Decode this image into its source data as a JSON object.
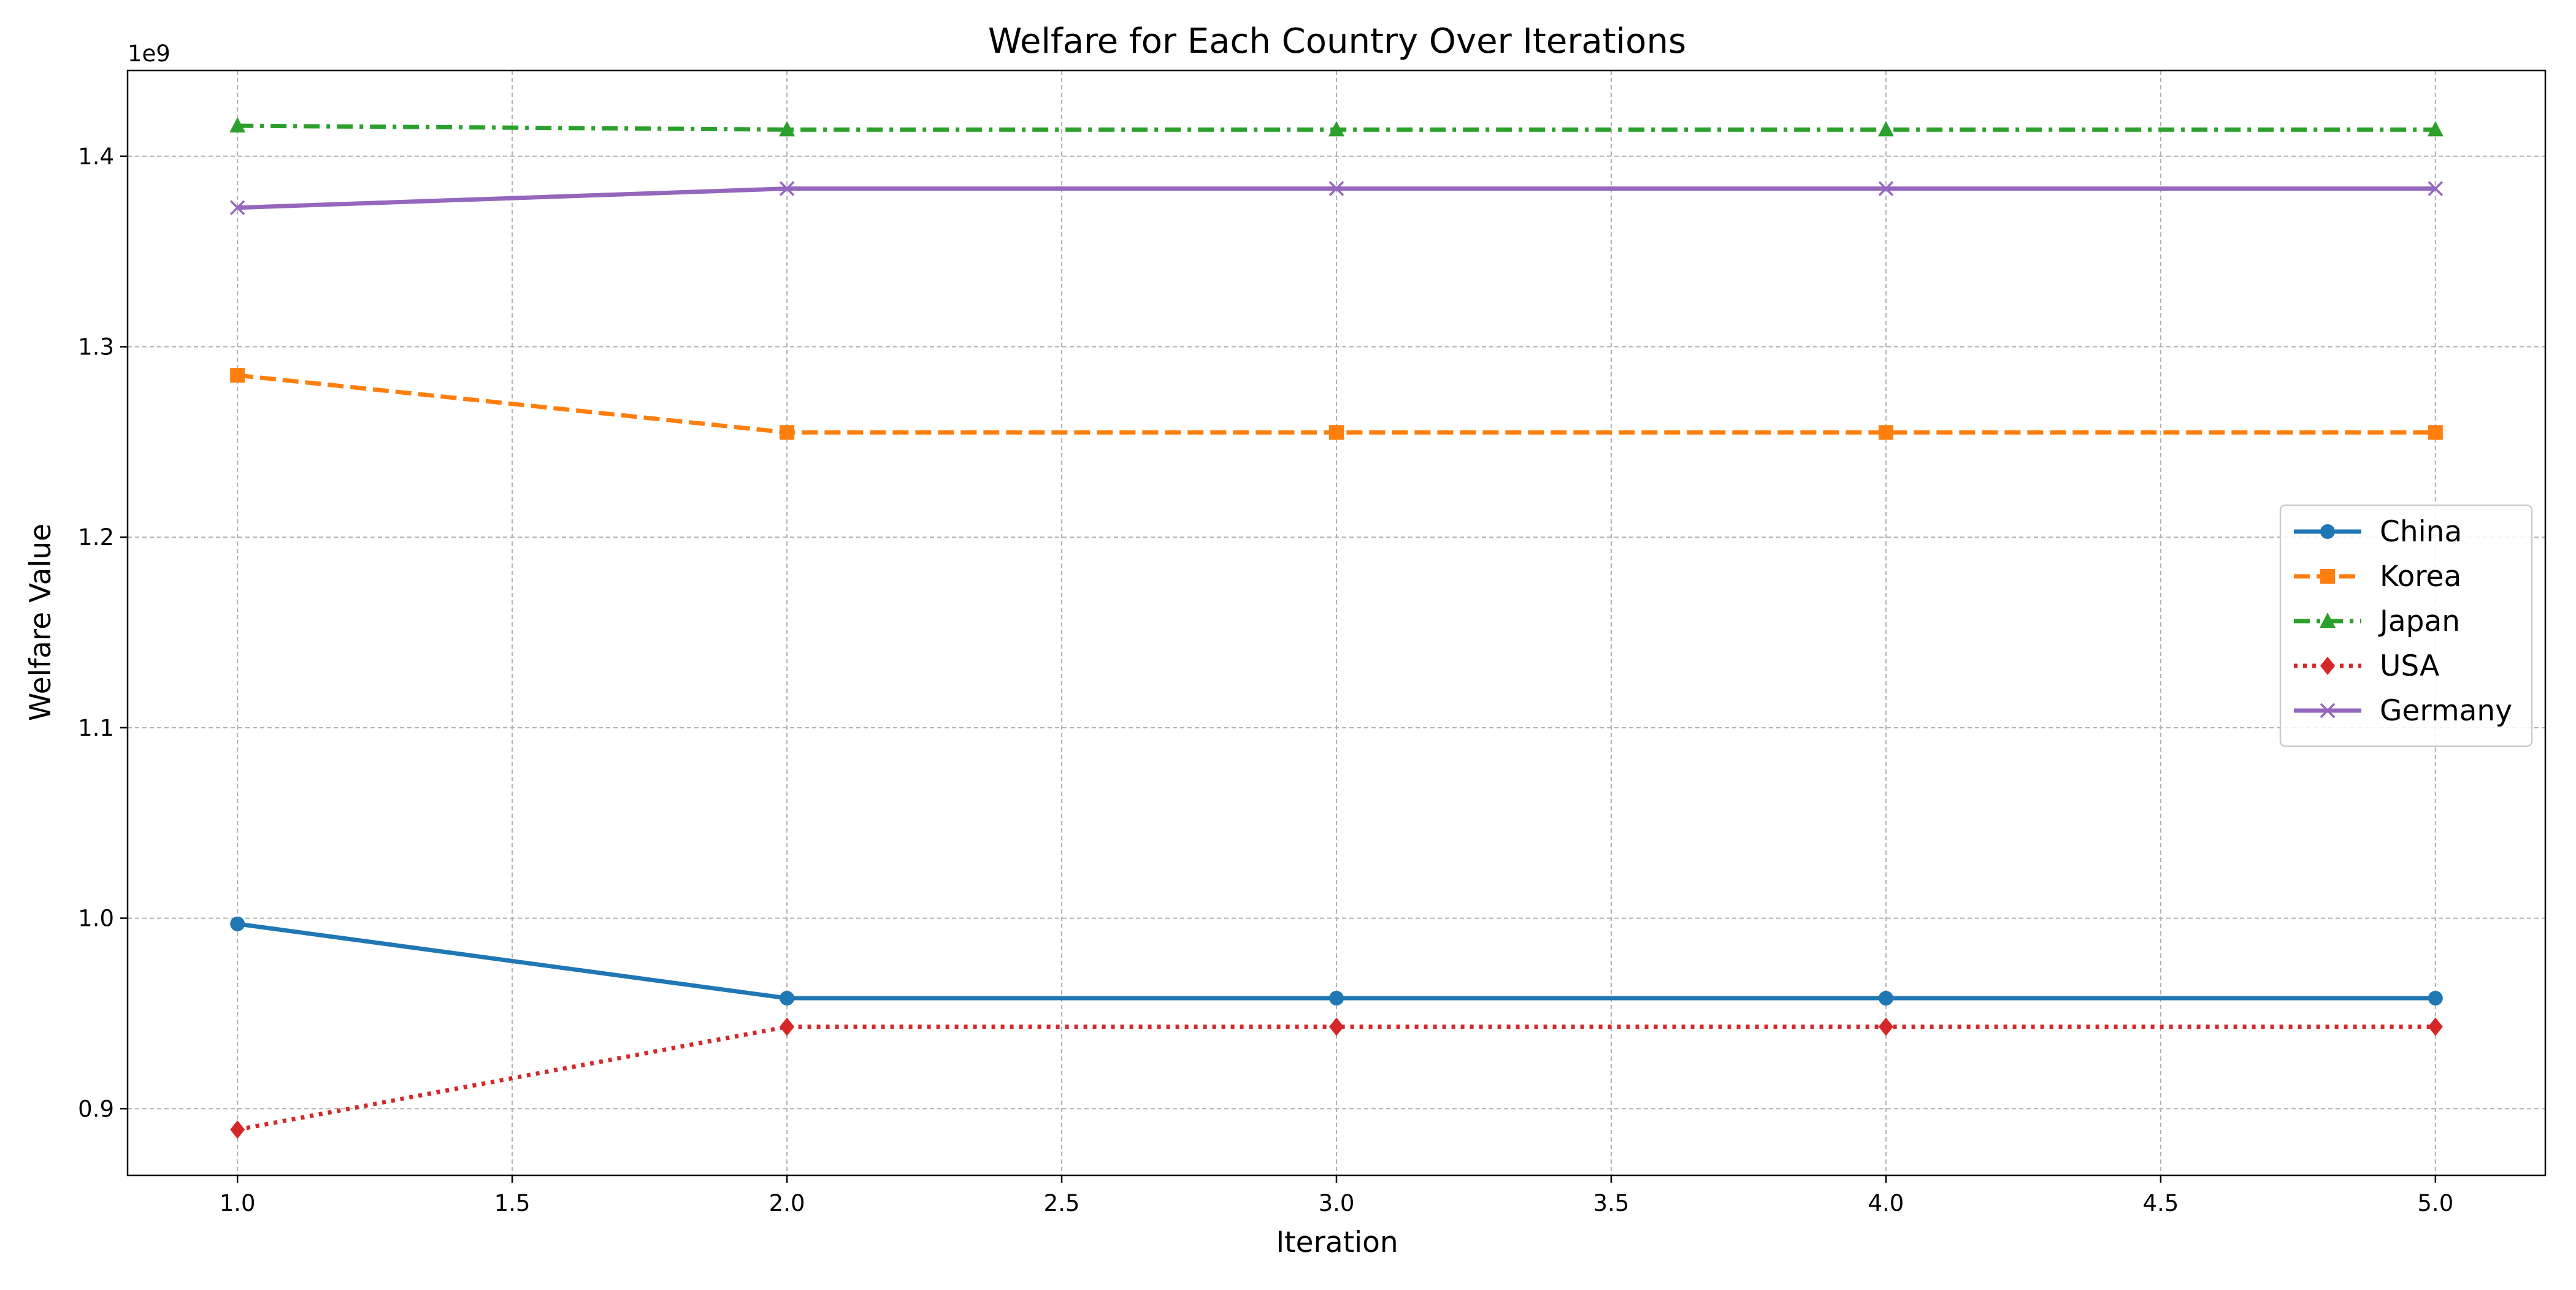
{
  "chart_data": {
    "type": "line",
    "title": "Welfare for Each Country Over Iterations",
    "xlabel": "Iteration",
    "ylabel": "Welfare Value",
    "y_offset_text": "1e9",
    "y_multiplier": 1000000000,
    "xlim": [
      0.8,
      5.2
    ],
    "ylim": [
      865000000,
      1445000000
    ],
    "x_ticks": [
      1.0,
      1.5,
      2.0,
      2.5,
      3.0,
      3.5,
      4.0,
      4.5,
      5.0
    ],
    "x_tick_labels": [
      "1.0",
      "1.5",
      "2.0",
      "2.5",
      "3.0",
      "3.5",
      "4.0",
      "4.5",
      "5.0"
    ],
    "y_ticks": [
      900000000,
      1000000000,
      1100000000,
      1200000000,
      1300000000,
      1400000000
    ],
    "y_tick_labels": [
      "0.9",
      "1.0",
      "1.1",
      "1.2",
      "1.3",
      "1.4"
    ],
    "grid": true,
    "legend_position": "center-right",
    "x": [
      1,
      2,
      3,
      4,
      5
    ],
    "series": [
      {
        "name": "China",
        "color": "#1f77b4",
        "marker": "circle",
        "linestyle": "solid",
        "values": [
          997000000,
          958000000,
          958000000,
          958000000,
          958000000
        ]
      },
      {
        "name": "Korea",
        "color": "#ff7f0e",
        "marker": "square",
        "linestyle": "dashed",
        "values": [
          1285000000,
          1255000000,
          1255000000,
          1255000000,
          1255000000
        ]
      },
      {
        "name": "Japan",
        "color": "#2ca02c",
        "marker": "triangle",
        "linestyle": "dashdot",
        "values": [
          1416000000,
          1414000000,
          1414000000,
          1414000000,
          1414000000
        ]
      },
      {
        "name": "USA",
        "color": "#d62728",
        "marker": "diamond",
        "linestyle": "dotted",
        "values": [
          889000000,
          943000000,
          943000000,
          943000000,
          943000000
        ]
      },
      {
        "name": "Germany",
        "color": "#9467bd",
        "marker": "x",
        "linestyle": "solid",
        "values": [
          1373000000,
          1383000000,
          1383000000,
          1383000000,
          1383000000
        ]
      }
    ]
  }
}
